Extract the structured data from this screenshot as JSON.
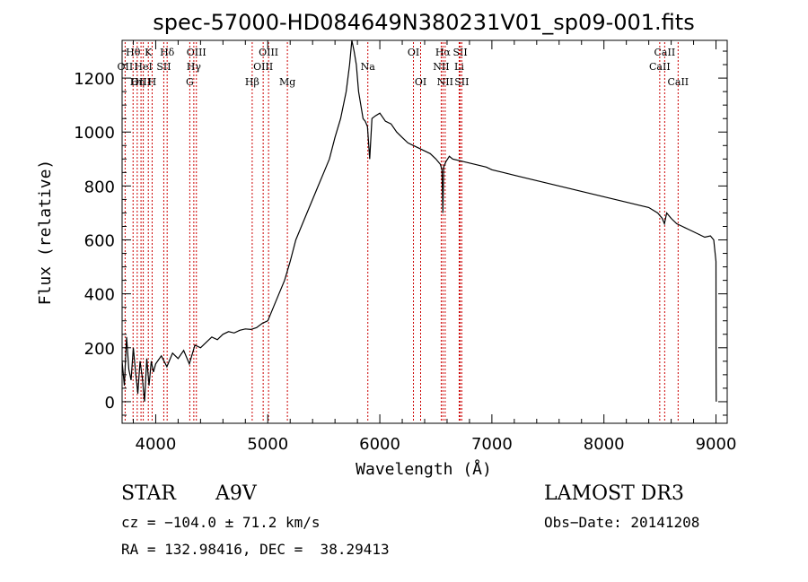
{
  "chart_data": {
    "type": "line",
    "title": "spec-57000-HD084649N380231V01_sp09-001.fits",
    "xlabel": "Wavelength (Å)",
    "ylabel": "Flux (relative)",
    "xlim": [
      3700,
      9100
    ],
    "ylim": [
      -80,
      1340
    ],
    "xticks": [
      4000,
      5000,
      6000,
      7000,
      8000,
      9000
    ],
    "yticks": [
      0,
      200,
      400,
      600,
      800,
      1000,
      1200
    ],
    "series": [
      {
        "name": "spectrum",
        "x": [
          3700,
          3720,
          3740,
          3760,
          3780,
          3800,
          3820,
          3840,
          3860,
          3880,
          3900,
          3920,
          3940,
          3960,
          3980,
          4000,
          4050,
          4100,
          4150,
          4200,
          4250,
          4300,
          4350,
          4400,
          4450,
          4500,
          4550,
          4600,
          4650,
          4700,
          4750,
          4800,
          4850,
          4900,
          4950,
          5000,
          5050,
          5100,
          5150,
          5200,
          5250,
          5300,
          5350,
          5400,
          5450,
          5500,
          5550,
          5600,
          5650,
          5700,
          5730,
          5750,
          5770,
          5790,
          5810,
          5830,
          5850,
          5870,
          5890,
          5910,
          5930,
          5960,
          6000,
          6050,
          6100,
          6150,
          6200,
          6250,
          6300,
          6350,
          6400,
          6450,
          6500,
          6540,
          6555,
          6563,
          6570,
          6590,
          6620,
          6650,
          6700,
          6750,
          6800,
          6850,
          6900,
          6950,
          7000,
          7100,
          7200,
          7300,
          7400,
          7500,
          7600,
          7700,
          7800,
          7900,
          8000,
          8100,
          8200,
          8300,
          8400,
          8480,
          8500,
          8520,
          8540,
          8560,
          8600,
          8650,
          8700,
          8750,
          8800,
          8850,
          8900,
          8950,
          8980,
          9000,
          9001,
          9002
        ],
        "values": [
          150,
          60,
          240,
          120,
          80,
          200,
          110,
          30,
          150,
          90,
          0,
          160,
          60,
          150,
          110,
          140,
          170,
          130,
          180,
          160,
          190,
          140,
          210,
          200,
          220,
          240,
          230,
          250,
          260,
          255,
          265,
          270,
          268,
          275,
          290,
          300,
          350,
          400,
          450,
          520,
          600,
          650,
          700,
          750,
          800,
          850,
          900,
          980,
          1050,
          1150,
          1250,
          1340,
          1300,
          1250,
          1150,
          1100,
          1050,
          1040,
          1020,
          900,
          1050,
          1060,
          1070,
          1040,
          1030,
          1000,
          980,
          960,
          950,
          940,
          930,
          920,
          900,
          880,
          860,
          700,
          870,
          890,
          910,
          900,
          895,
          890,
          885,
          880,
          875,
          870,
          860,
          850,
          840,
          830,
          820,
          810,
          800,
          790,
          780,
          770,
          760,
          750,
          740,
          730,
          720,
          700,
          690,
          680,
          660,
          700,
          680,
          660,
          650,
          640,
          630,
          620,
          610,
          615,
          600,
          520,
          150,
          0
        ]
      }
    ],
    "lines": [
      {
        "name": "Hθ",
        "wavelength": 3798,
        "row": 1
      },
      {
        "name": "OII",
        "wavelength": 3727,
        "row": 2
      },
      {
        "name": "OIII",
        "wavelength": 3869,
        "row": 3
      },
      {
        "name": "Hη",
        "wavelength": 3835,
        "row": 3
      },
      {
        "name": "K",
        "wavelength": 3934,
        "row": 1
      },
      {
        "name": "HeI",
        "wavelength": 3889,
        "row": 2
      },
      {
        "name": "H",
        "wavelength": 3968,
        "row": 3
      },
      {
        "name": "Hδ",
        "wavelength": 4102,
        "row": 1
      },
      {
        "name": "SII",
        "wavelength": 4072,
        "row": 2
      },
      {
        "name": "OIII",
        "wavelength": 4363,
        "row": 1
      },
      {
        "name": "Hγ",
        "wavelength": 4340,
        "row": 2
      },
      {
        "name": "G",
        "wavelength": 4304,
        "row": 3
      },
      {
        "name": "OIII",
        "wavelength": 5007,
        "row": 1
      },
      {
        "name": "OIII",
        "wavelength": 4959,
        "row": 2
      },
      {
        "name": "Hβ",
        "wavelength": 4861,
        "row": 3
      },
      {
        "name": "Mg",
        "wavelength": 5175,
        "row": 3
      },
      {
        "name": "Na",
        "wavelength": 5893,
        "row": 2
      },
      {
        "name": "OI",
        "wavelength": 6300,
        "row": 1
      },
      {
        "name": "OI",
        "wavelength": 6364,
        "row": 3
      },
      {
        "name": "Hα",
        "wavelength": 6563,
        "row": 1
      },
      {
        "name": "SII",
        "wavelength": 6717,
        "row": 1
      },
      {
        "name": "NII",
        "wavelength": 6548,
        "row": 2
      },
      {
        "name": "Li",
        "wavelength": 6708,
        "row": 2
      },
      {
        "name": "NII",
        "wavelength": 6583,
        "row": 3
      },
      {
        "name": "SII",
        "wavelength": 6731,
        "row": 3
      },
      {
        "name": "CaII",
        "wavelength": 8542,
        "row": 1
      },
      {
        "name": "CaII",
        "wavelength": 8498,
        "row": 2
      },
      {
        "name": "CaII",
        "wavelength": 8662,
        "row": 3
      }
    ],
    "line_color": "#cc0000"
  },
  "info": {
    "class_label": "STAR",
    "subclass": "A9V",
    "survey": "LAMOST DR3",
    "cz": "cz = −104.0 ± 71.2 km/s",
    "obs_date": "Obs−Date: 20141208",
    "radec": "RA = 132.98416, DEC =  38.29413"
  }
}
